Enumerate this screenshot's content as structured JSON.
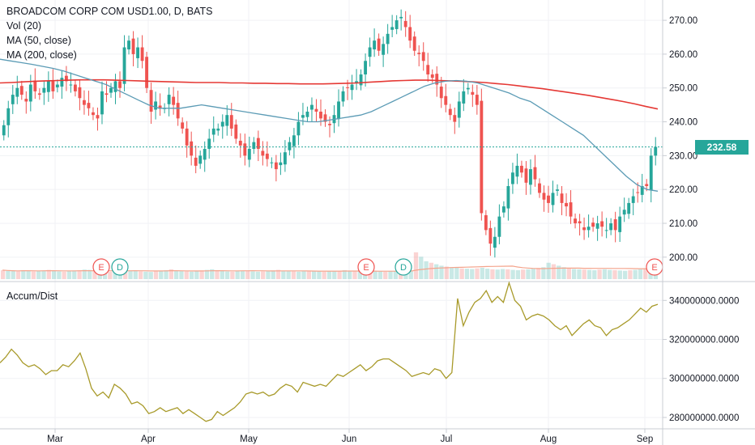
{
  "legend": {
    "symbol_line": "BROADCOM CORP COM USD1.00, D, BATS",
    "volume_line": "Vol (20)",
    "ma50_line": "MA (50, close)",
    "ma200_line": "MA (200, close)",
    "accum_line": "Accum/Dist"
  },
  "last_price_label": "232.58",
  "colors": {
    "up": "#26a69a",
    "down": "#ef5350",
    "ma50": "#5b9bb5",
    "ma200": "#e53935",
    "ad": "#a89a2a",
    "last_price": "#26a69a",
    "earnings": "#ef5350",
    "dividend": "#26a69a",
    "volume_ma": "#f4a48c"
  },
  "chart_data": [
    {
      "type": "candlestick",
      "title": "BROADCOM CORP COM USD1.00, D, BATS",
      "x_ticks": [
        "Mar",
        "Apr",
        "May",
        "Jun",
        "Jul",
        "Aug",
        "Sep"
      ],
      "y_ticks": [
        "200.00",
        "210.00",
        "220.00",
        "230.00",
        "240.00",
        "250.00",
        "260.00",
        "270.00"
      ],
      "ylim": [
        193.5,
        276
      ],
      "last_price": 232.58,
      "events": [
        {
          "label": "E",
          "kind": "earnings",
          "position": "early Mar"
        },
        {
          "label": "D",
          "kind": "dividend",
          "position": "early Mar"
        },
        {
          "label": "E",
          "kind": "earnings",
          "position": "early Jun"
        },
        {
          "label": "D",
          "kind": "dividend",
          "position": "mid Jun"
        },
        {
          "label": "E",
          "kind": "earnings",
          "position": "early Sep"
        }
      ],
      "close": [
        239,
        244,
        248,
        250,
        248,
        246,
        251,
        249,
        248,
        250,
        252,
        249,
        251,
        253,
        252,
        251,
        249,
        247,
        245,
        244,
        242,
        241,
        249,
        248,
        250,
        252,
        250,
        262,
        264,
        260,
        262,
        258,
        250,
        243,
        246,
        244,
        244,
        248,
        245,
        241,
        238,
        233,
        230,
        227,
        230,
        232,
        235,
        238,
        238,
        240,
        242,
        238,
        235,
        233,
        230,
        232,
        234,
        232,
        230,
        229,
        228,
        226,
        228,
        231,
        234,
        236,
        240,
        242,
        243,
        245,
        243,
        241,
        240,
        239,
        242,
        246,
        249,
        250,
        251,
        252,
        254,
        258,
        262,
        264,
        261,
        263,
        266,
        268,
        270,
        271,
        268,
        264,
        261,
        260,
        258,
        254,
        253,
        251,
        247,
        245,
        242,
        240,
        246,
        249,
        250,
        248,
        245,
        213,
        208,
        204,
        206,
        212,
        215,
        221,
        225,
        227,
        225,
        222,
        226,
        223,
        219,
        217,
        216,
        219,
        220,
        216,
        215,
        212,
        210,
        210,
        208,
        209,
        209,
        210,
        209,
        208,
        210,
        208,
        212,
        214,
        216,
        218,
        219,
        221,
        221,
        230,
        232.58
      ],
      "series_ma50": "smooth moving average starting ~259 in Feb, falling to ~245 in Apr, ~240 in May, rising to ~252 in Jul, falling to ~220 late Aug",
      "ma50": [
        258.5,
        258,
        257.5,
        257,
        256.4,
        255.8,
        255,
        254,
        253,
        252,
        251,
        249.5,
        248,
        246.5,
        245,
        244,
        244,
        244,
        244.5,
        245,
        244.5,
        244,
        243.5,
        243,
        242.5,
        242,
        241.5,
        241,
        240.5,
        240,
        240,
        240.5,
        241,
        241.5,
        242,
        243,
        244.5,
        246,
        247.5,
        249,
        250.5,
        251.5,
        252,
        252.2,
        252,
        251.5,
        250.5,
        249.5,
        248.5,
        247,
        246,
        244,
        242,
        240,
        238,
        236,
        233,
        230,
        227,
        224,
        221.5,
        220,
        219.5
      ],
      "ma200": [
        251.5,
        251.6,
        251.8,
        252,
        252.1,
        252.2,
        252.3,
        252.4,
        252.4,
        252.4,
        252.3,
        252.2,
        252.1,
        252,
        251.9,
        251.8,
        251.7,
        251.6,
        251.6,
        251.6,
        251.5,
        251.5,
        251.4,
        251.4,
        251.3,
        251.3,
        251.2,
        251.2,
        251.2,
        251.3,
        251.4,
        251.5,
        251.7,
        251.9,
        252.1,
        252.2,
        252.3,
        252.3,
        252.2,
        252.1,
        252,
        251.8,
        251.6,
        251.3,
        251,
        250.6,
        250.2,
        249.8,
        249.3,
        248.8,
        248.3,
        247.8,
        247.2,
        246.6,
        246,
        245.3,
        244.5,
        243.8
      ]
    },
    {
      "type": "line",
      "title": "Accum/Dist",
      "y_ticks": [
        "280000000.0000",
        "300000000.0000",
        "320000000.0000",
        "340000000.0000"
      ],
      "ylim": [
        275000000,
        348000000
      ],
      "values": [
        308,
        311,
        315,
        312,
        308,
        306,
        307,
        305,
        302,
        304,
        304,
        307,
        306,
        309,
        313,
        305,
        295,
        291,
        293,
        290,
        297,
        295,
        292,
        287,
        288,
        286,
        282,
        283,
        285,
        283,
        284,
        285,
        282,
        284,
        282,
        280,
        278,
        279,
        283,
        281,
        283,
        285,
        288,
        292,
        293,
        292,
        293,
        291,
        292,
        295,
        297,
        296,
        293,
        298,
        297,
        296,
        297,
        296,
        299,
        302,
        301,
        303,
        305,
        307,
        304,
        306,
        309,
        310,
        310,
        308,
        306,
        304,
        301,
        302,
        303,
        302,
        305,
        304,
        300,
        303,
        341,
        327,
        334,
        339,
        341,
        345,
        339,
        342,
        339,
        349,
        340,
        337,
        330,
        332,
        333,
        332,
        330,
        327,
        325,
        327,
        322,
        325,
        328,
        330,
        327,
        326,
        322,
        325,
        326,
        328,
        330,
        333,
        336,
        334,
        337,
        338
      ]
    },
    {
      "type": "bar",
      "title": "Vol (20)",
      "note": "volume histogram at base of price pane with volume moving average",
      "values": [
        30,
        28,
        27,
        26,
        30,
        28,
        26,
        27,
        29,
        31,
        28,
        26,
        25,
        27,
        29,
        30,
        32,
        31,
        28,
        27,
        26,
        25,
        27,
        30,
        28,
        29,
        27,
        26,
        25,
        24,
        27,
        28,
        30,
        33,
        29,
        27,
        26,
        25,
        27,
        29,
        31,
        33,
        30,
        28,
        26,
        25,
        27,
        28,
        27,
        26,
        25,
        26,
        27,
        29,
        31,
        28,
        27,
        26,
        25,
        27,
        28,
        27,
        26,
        25,
        27,
        26,
        28,
        30,
        28,
        27,
        26,
        25,
        24,
        27,
        26,
        25,
        27,
        28,
        29,
        27,
        26,
        90,
        75,
        60,
        55,
        50,
        45,
        42,
        40,
        38,
        36,
        35,
        34,
        36,
        38,
        35,
        33,
        32,
        34,
        33,
        31,
        30,
        32,
        33,
        35,
        37,
        40,
        55,
        50,
        45,
        40,
        36,
        34,
        33,
        32,
        31,
        30,
        32,
        33,
        31,
        30,
        29,
        28,
        30,
        31,
        33,
        35,
        38,
        55
      ]
    }
  ]
}
